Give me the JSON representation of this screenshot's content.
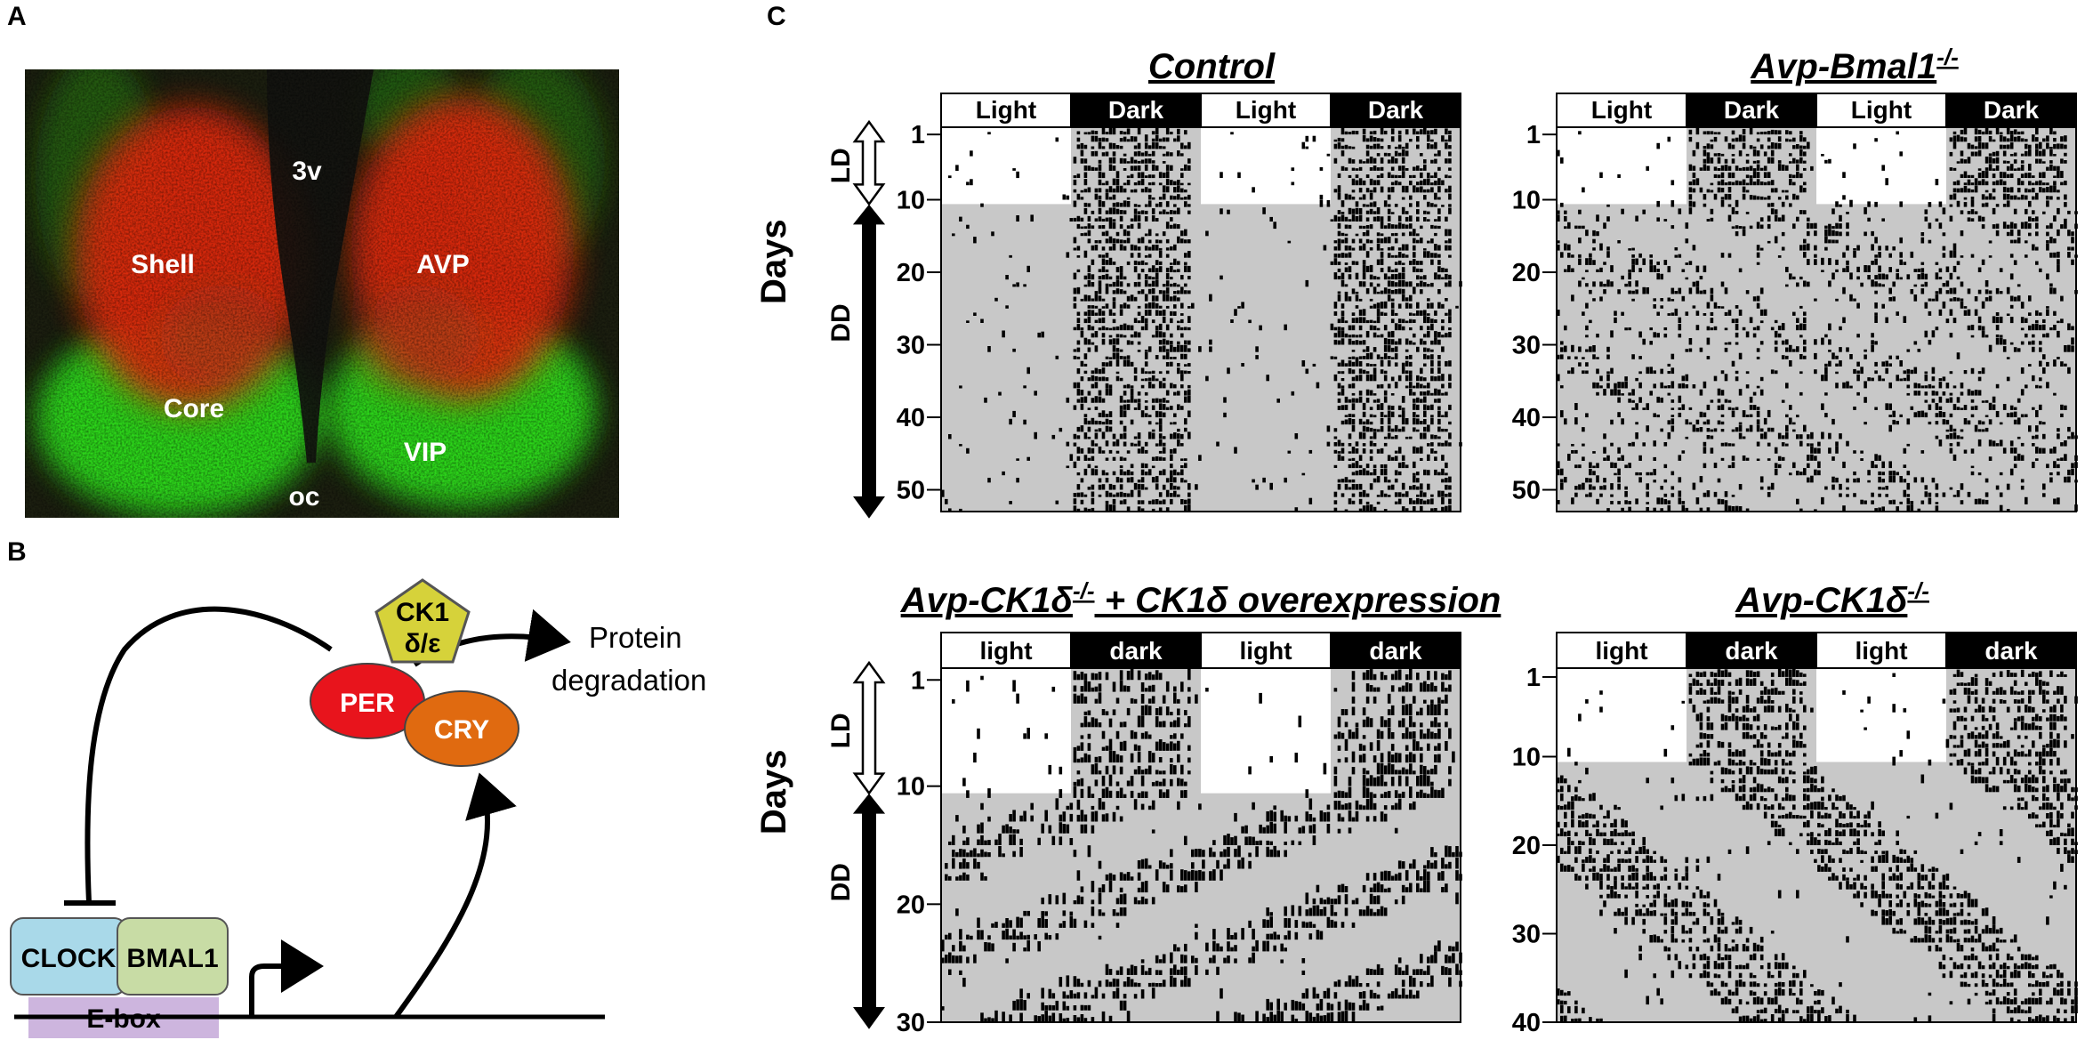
{
  "panels": {
    "A": {
      "letter": "A",
      "labels": {
        "ventricle": "3v",
        "shell": "Shell",
        "avp": "AVP",
        "core": "Core",
        "vip": "VIP",
        "chiasm": "oc"
      },
      "colors": {
        "background": "#1c1f10",
        "red": "#e22a10",
        "green": "#2ee01c"
      }
    },
    "B": {
      "letter": "B",
      "kinase_line1": "CK1",
      "kinase_line2": "δ/ε",
      "per": "PER",
      "cry": "CRY",
      "degradation_line1": "Protein",
      "degradation_line2": "degradation",
      "clock": "CLOCK",
      "bmal1": "BMAL1",
      "ebox": "E-box",
      "colors": {
        "kinase": "#d6d23a",
        "per": "#e8141c",
        "cry": "#e06a10",
        "clock": "#a9d9e9",
        "bmal1": "#c8dca5",
        "ebox": "#cdb5de"
      }
    },
    "C": {
      "letter": "C",
      "y_axis_title": "Days",
      "ld_label": "LD",
      "dd_label": "DD",
      "actograms": [
        {
          "title": "Control",
          "phase_labels": [
            "Light",
            "Dark",
            "Light",
            "Dark"
          ],
          "days": 53,
          "ld_days": 10,
          "period_dd": 24.0,
          "y_ticks": [
            1,
            10,
            20,
            30,
            40,
            50
          ]
        },
        {
          "title": "Avp-Bmal1",
          "title_sup": "-/-",
          "phase_labels": [
            "Light",
            "Dark",
            "Light",
            "Dark"
          ],
          "days": 53,
          "ld_days": 10,
          "period_dd": "arrhythmic",
          "y_ticks": [
            1,
            10,
            20,
            30,
            40,
            50
          ]
        },
        {
          "title": "Avp-CK1δ",
          "title_sup": "-/-",
          "title_suffix": " + CK1δ overexpression",
          "phase_labels": [
            "light",
            "dark",
            "light",
            "dark"
          ],
          "days": 30,
          "ld_days": 10,
          "period_dd": 21.0,
          "y_ticks": [
            1,
            10,
            20,
            30
          ]
        },
        {
          "title": "Avp-CK1δ",
          "title_sup": "-/-",
          "phase_labels": [
            "light",
            "dark",
            "light",
            "dark"
          ],
          "days": 40,
          "ld_days": 10,
          "period_dd": 25.0,
          "y_ticks": [
            1,
            10,
            20,
            30,
            40
          ]
        }
      ],
      "colors": {
        "dd_background": "#c8c8c8",
        "light_box": "#ffffff",
        "dark_box": "#000000",
        "activity": "#000000"
      }
    }
  }
}
